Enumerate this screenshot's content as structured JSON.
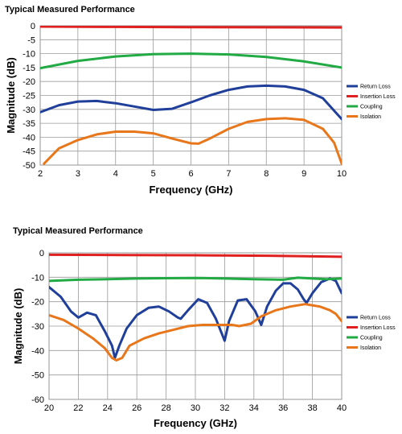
{
  "chart_data": [
    {
      "type": "line",
      "title": "Typical Measured Performance",
      "xlabel": "Frequency  (GHz)",
      "ylabel": "Magnitude (dB)",
      "xlim": [
        2,
        10
      ],
      "ylim": [
        -50,
        0
      ],
      "xticks": [
        2,
        3,
        4,
        5,
        6,
        7,
        8,
        9,
        10
      ],
      "yticks": [
        0,
        -5,
        -10,
        -15,
        -20,
        -25,
        -30,
        -35,
        -40,
        -45,
        -50
      ],
      "grid": true,
      "legend_position": "right",
      "series": [
        {
          "name": "Return Loss",
          "color": "#1f3f9a",
          "x": [
            2.0,
            2.5,
            3.0,
            3.5,
            4.0,
            4.5,
            5.0,
            5.5,
            6.0,
            6.5,
            7.0,
            7.5,
            8.0,
            8.5,
            9.0,
            9.5,
            10.0
          ],
          "y": [
            -31.0,
            -28.5,
            -27.2,
            -27.0,
            -27.8,
            -29.0,
            -30.2,
            -29.8,
            -27.5,
            -25.0,
            -23.0,
            -21.8,
            -21.5,
            -21.8,
            -23.0,
            -26.0,
            -33.5
          ]
        },
        {
          "name": "Insertion Loss",
          "color": "#e02020",
          "x": [
            2,
            4,
            6,
            8,
            10
          ],
          "y": [
            -0.3,
            -0.4,
            -0.5,
            -0.55,
            -0.6
          ]
        },
        {
          "name": "Coupling",
          "color": "#22aa44",
          "x": [
            2.0,
            3.0,
            4.0,
            5.0,
            6.0,
            7.0,
            8.0,
            9.0,
            10.0
          ],
          "y": [
            -15.2,
            -12.6,
            -11.0,
            -10.2,
            -10.0,
            -10.3,
            -11.2,
            -12.8,
            -15.0
          ]
        },
        {
          "name": "Isolation",
          "color": "#e8761a",
          "x": [
            2.1,
            2.5,
            3.0,
            3.5,
            4.0,
            4.5,
            5.0,
            5.5,
            6.0,
            6.2,
            6.5,
            7.0,
            7.5,
            8.0,
            8.5,
            9.0,
            9.5,
            9.8,
            10.0
          ],
          "y": [
            -49.5,
            -44.0,
            -41.0,
            -39.0,
            -38.0,
            -38.0,
            -38.6,
            -40.5,
            -42.2,
            -42.3,
            -40.5,
            -37.0,
            -34.5,
            -33.5,
            -33.2,
            -33.8,
            -37.0,
            -42.0,
            -49.5
          ]
        }
      ]
    },
    {
      "type": "line",
      "title": "Typical Measured Performance",
      "xlabel": "Frequency  (GHz)",
      "ylabel": "Magnitude (dB)",
      "xlim": [
        20,
        40
      ],
      "ylim": [
        -60,
        0
      ],
      "xticks": [
        20,
        22,
        24,
        26,
        28,
        30,
        32,
        34,
        36,
        38,
        40
      ],
      "yticks": [
        0,
        -10,
        -20,
        -30,
        -40,
        -50,
        -60
      ],
      "grid": true,
      "legend_position": "right",
      "series": [
        {
          "name": "Return Loss",
          "color": "#1f3f9a",
          "x": [
            20.0,
            20.8,
            21.5,
            22.0,
            22.6,
            23.2,
            23.8,
            24.3,
            24.5,
            24.8,
            25.3,
            26.0,
            26.8,
            27.5,
            28.2,
            28.8,
            29.0,
            29.5,
            30.2,
            30.8,
            31.4,
            31.8,
            32.0,
            32.3,
            32.9,
            33.5,
            34.1,
            34.5,
            34.9,
            35.5,
            36.0,
            36.5,
            37.0,
            37.4,
            37.6,
            38.0,
            38.6,
            39.2,
            39.6,
            40.0
          ],
          "y": [
            -14,
            -18,
            -24,
            -26.5,
            -24.5,
            -25.5,
            -32,
            -38,
            -43,
            -38,
            -31,
            -25.5,
            -22.5,
            -22,
            -24,
            -26.5,
            -27,
            -23.5,
            -19,
            -20.5,
            -27,
            -33,
            -36,
            -28,
            -19.5,
            -19,
            -24,
            -29.5,
            -22,
            -15.5,
            -12.5,
            -12.5,
            -15,
            -19,
            -20.5,
            -16.5,
            -12,
            -10.5,
            -11.5,
            -16.5
          ]
        },
        {
          "name": "Insertion Loss",
          "color": "#e02020",
          "x": [
            20,
            25,
            30,
            35,
            40
          ],
          "y": [
            -0.8,
            -0.9,
            -1.0,
            -1.2,
            -1.6
          ]
        },
        {
          "name": "Coupling",
          "color": "#22aa44",
          "x": [
            20,
            22,
            24,
            26,
            28,
            30,
            32,
            34,
            36,
            37,
            38,
            39,
            40
          ],
          "y": [
            -11.5,
            -11,
            -10.8,
            -10.5,
            -10.4,
            -10.3,
            -10.5,
            -10.8,
            -11,
            -10.2,
            -10.5,
            -10.8,
            -10.5
          ]
        },
        {
          "name": "Isolation",
          "color": "#e8761a",
          "x": [
            20.0,
            21.0,
            22.0,
            23.0,
            23.8,
            24.3,
            24.6,
            25.0,
            25.5,
            26.5,
            27.5,
            28.5,
            29.5,
            30.5,
            31.5,
            32.5,
            33.0,
            33.8,
            34.5,
            35.5,
            36.5,
            37.5,
            38.5,
            39.2,
            39.6,
            40.0
          ],
          "y": [
            -25.5,
            -27.5,
            -31,
            -35,
            -39,
            -43,
            -44,
            -43,
            -38,
            -35,
            -33,
            -31.5,
            -30,
            -29.5,
            -29.5,
            -29.5,
            -30,
            -29,
            -26,
            -23.5,
            -22,
            -21,
            -22,
            -23.5,
            -25,
            -28
          ]
        }
      ]
    }
  ]
}
